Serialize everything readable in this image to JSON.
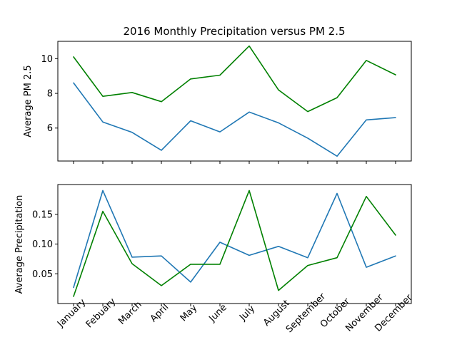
{
  "colors": {
    "blue": "#1f77b4",
    "green": "#008000",
    "axes": "#000000",
    "background": "#ffffff"
  },
  "chart_data": {
    "title": "2016 Monthly Precipitation versus PM 2.5",
    "months": [
      "January",
      "Febuary",
      "March",
      "April",
      "May",
      "June",
      "July",
      "August",
      "September",
      "October",
      "November",
      "December"
    ],
    "panels": [
      {
        "type": "line",
        "ylabel": "Average PM 2.5",
        "ylim": [
          4.1,
          11.0
        ],
        "yticks": [
          6,
          8,
          10
        ],
        "ytick_labels": [
          "6",
          "8",
          "10"
        ],
        "grid": false,
        "series": [
          {
            "color": "#1f77b4",
            "values": [
              8.6,
              6.35,
              5.75,
              4.72,
              6.42,
              5.78,
              6.92,
              6.3,
              5.42,
              4.38,
              6.47,
              6.6
            ]
          },
          {
            "color": "#008000",
            "values": [
              10.1,
              7.83,
              8.05,
              7.52,
              8.83,
              9.05,
              10.73,
              8.2,
              6.95,
              7.75,
              9.9,
              9.07
            ]
          }
        ]
      },
      {
        "type": "line",
        "ylabel": "Average Precipitation",
        "ylim": [
          0.0,
          0.2
        ],
        "yticks": [
          0.05,
          0.1,
          0.15
        ],
        "ytick_labels": [
          "0.05",
          "0.10",
          "0.15"
        ],
        "grid": false,
        "series": [
          {
            "color": "#1f77b4",
            "values": [
              0.027,
              0.19,
              0.078,
              0.08,
              0.036,
              0.103,
              0.081,
              0.096,
              0.077,
              0.185,
              0.061,
              0.08
            ]
          },
          {
            "color": "#008000",
            "values": [
              0.012,
              0.155,
              0.067,
              0.03,
              0.066,
              0.066,
              0.19,
              0.022,
              0.064,
              0.077,
              0.18,
              0.115
            ]
          }
        ]
      }
    ]
  }
}
